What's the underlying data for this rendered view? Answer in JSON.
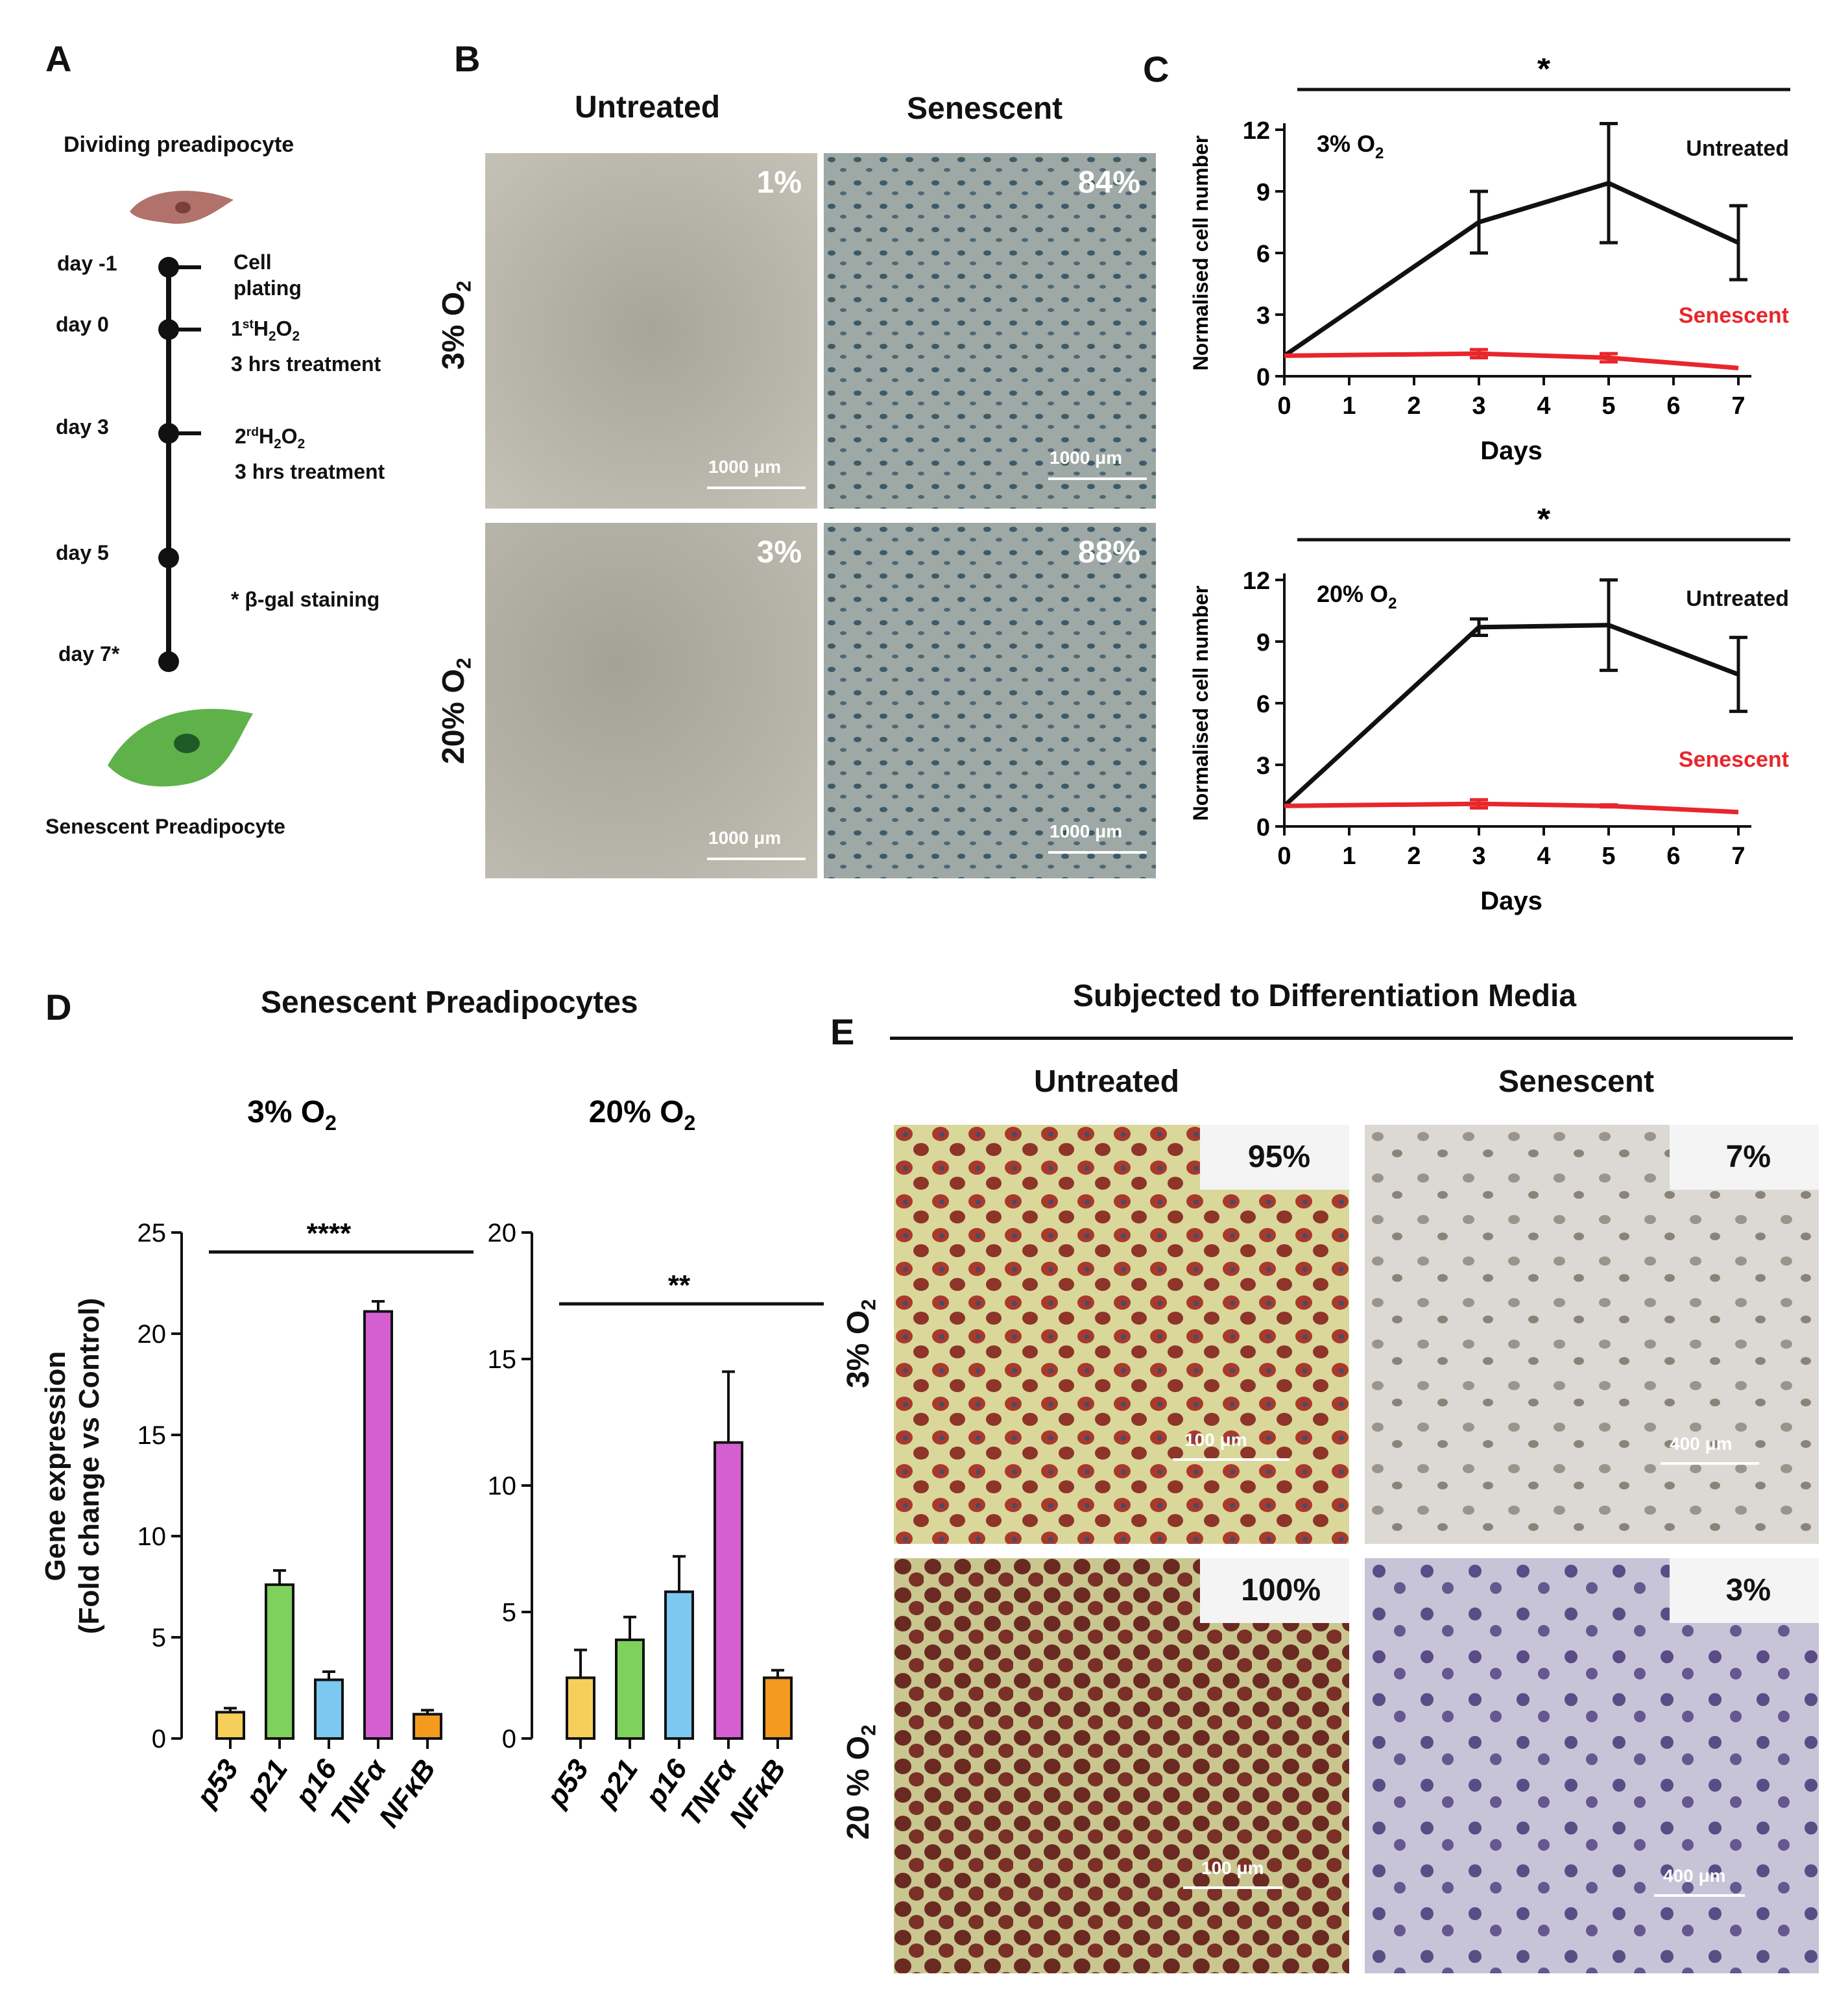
{
  "panelA": {
    "letter": "A",
    "top_label": "Dividing preadipocyte",
    "bottom_label": "Senescent Preadipocyte",
    "days": [
      "day -1",
      "day 0",
      "day 3",
      "day 5",
      "day 7*"
    ],
    "events": [
      {
        "line1": "Cell",
        "line2": "plating"
      },
      {
        "line1_pre": "1",
        "line1_sup": "st",
        "line1_mid": "H",
        "line1_sub1": "2",
        "line1_mid2": "O",
        "line1_sub2": "2",
        "line2": "3 hrs treatment"
      },
      {
        "line1_pre": "2",
        "line1_sup": "rd",
        "line1_mid": "H",
        "line1_sub1": "2",
        "line1_mid2": "O",
        "line1_sub2": "2",
        "line2": "3 hrs treatment"
      }
    ],
    "staining_note": "*  β-gal staining",
    "colors": {
      "dividing_cell": "#b0726a",
      "senescent_cell": "#5fb24a"
    }
  },
  "panelB": {
    "letter": "B",
    "col_labels": [
      "Untreated",
      "Senescent"
    ],
    "row_labels": [
      {
        "main": "3% O",
        "sub": "2"
      },
      {
        "main": "20% O",
        "sub": "2"
      }
    ],
    "images": [
      {
        "percent": "1%",
        "scale": "1000 μm"
      },
      {
        "percent": "84%",
        "scale": "1000 μm"
      },
      {
        "percent": "3%",
        "scale": "1000 μm"
      },
      {
        "percent": "88%",
        "scale": "1000 μm"
      }
    ]
  },
  "panelC": {
    "letter": "C",
    "significance": "*",
    "xlabel": "Days",
    "ylabel": "Normalised cell number",
    "series_labels": {
      "untreated": "Untreated",
      "senescent": "Senescent"
    },
    "colors": {
      "untreated": "#111111",
      "senescent": "#e8262b"
    }
  },
  "panelD": {
    "letter": "D",
    "title": "Senescent Preadipocytes",
    "ylabel_line1": "Gene expression",
    "ylabel_line2": "(Fold change vs Control)",
    "colors": {
      "p53": "#f5cf5a",
      "p21": "#7fd15e",
      "p16": "#7dc8f0",
      "TNFα": "#d55fd0",
      "NFκB": "#f39a1f"
    }
  },
  "panelE": {
    "letter": "E",
    "title": "Subjected to Differentiation Media",
    "col_labels": [
      "Untreated",
      "Senescent"
    ],
    "row_labels": [
      {
        "main": "3% O",
        "sub": "2"
      },
      {
        "main": "20 % O",
        "sub": "2"
      }
    ],
    "images": [
      {
        "percent": "95%",
        "scale": "100 μm"
      },
      {
        "percent": "7%",
        "scale": "400 μm"
      },
      {
        "percent": "100%",
        "scale": "100 μm"
      },
      {
        "percent": "3%",
        "scale": "400 μm"
      }
    ]
  },
  "chart_data": [
    {
      "type": "line",
      "title": "3% O2",
      "xlabel": "Days",
      "ylabel": "Normalised cell number",
      "xlim": [
        0,
        7
      ],
      "ylim": [
        0,
        12
      ],
      "xticks": [
        0,
        1,
        2,
        3,
        4,
        5,
        6,
        7
      ],
      "yticks": [
        0,
        3,
        6,
        9,
        12
      ],
      "significance": "*",
      "series": [
        {
          "name": "Untreated",
          "color": "#111111",
          "x": [
            0,
            3,
            5,
            7
          ],
          "y": [
            1,
            7.5,
            9.4,
            6.5
          ],
          "err": [
            0,
            1.5,
            2.9,
            1.8
          ]
        },
        {
          "name": "Senescent",
          "color": "#e8262b",
          "x": [
            0,
            3,
            5,
            7
          ],
          "y": [
            1,
            1.1,
            0.9,
            0.4
          ],
          "err": [
            0,
            0.2,
            0.2,
            0
          ]
        }
      ]
    },
    {
      "type": "line",
      "title": "20% O2",
      "xlabel": "Days",
      "ylabel": "Normalised cell number",
      "xlim": [
        0,
        7
      ],
      "ylim": [
        0,
        12
      ],
      "xticks": [
        0,
        1,
        2,
        3,
        4,
        5,
        6,
        7
      ],
      "yticks": [
        0,
        3,
        6,
        9,
        12
      ],
      "significance": "*",
      "series": [
        {
          "name": "Untreated",
          "color": "#111111",
          "x": [
            0,
            3,
            5,
            7
          ],
          "y": [
            1,
            9.7,
            9.8,
            7.4
          ],
          "err": [
            0,
            0.4,
            2.2,
            1.8
          ]
        },
        {
          "name": "Senescent",
          "color": "#e8262b",
          "x": [
            0,
            3,
            5,
            7
          ],
          "y": [
            1,
            1.1,
            1.0,
            0.7
          ],
          "err": [
            0,
            0.2,
            0.05,
            0
          ]
        }
      ]
    },
    {
      "type": "bar",
      "title": "3% O2",
      "ylabel": "Gene expression (Fold change vs Control)",
      "categories": [
        "p53",
        "p21",
        "p16",
        "TNFα",
        "NFκB"
      ],
      "values": [
        1.3,
        7.6,
        2.9,
        21.1,
        1.2
      ],
      "errors": [
        0.2,
        0.7,
        0.4,
        0.5,
        0.2
      ],
      "ylim": [
        0,
        25
      ],
      "yticks": [
        0,
        5,
        10,
        15,
        20,
        25
      ],
      "significance": "****"
    },
    {
      "type": "bar",
      "title": "20% O2",
      "ylabel": "Gene expression (Fold change vs Control)",
      "categories": [
        "p53",
        "p21",
        "p16",
        "TNFα",
        "NFκB"
      ],
      "values": [
        2.4,
        3.9,
        5.8,
        11.7,
        2.4
      ],
      "errors": [
        1.1,
        0.9,
        1.4,
        2.8,
        0.3
      ],
      "ylim": [
        0,
        20
      ],
      "yticks": [
        0,
        5,
        10,
        15,
        20
      ],
      "significance": "**"
    }
  ]
}
